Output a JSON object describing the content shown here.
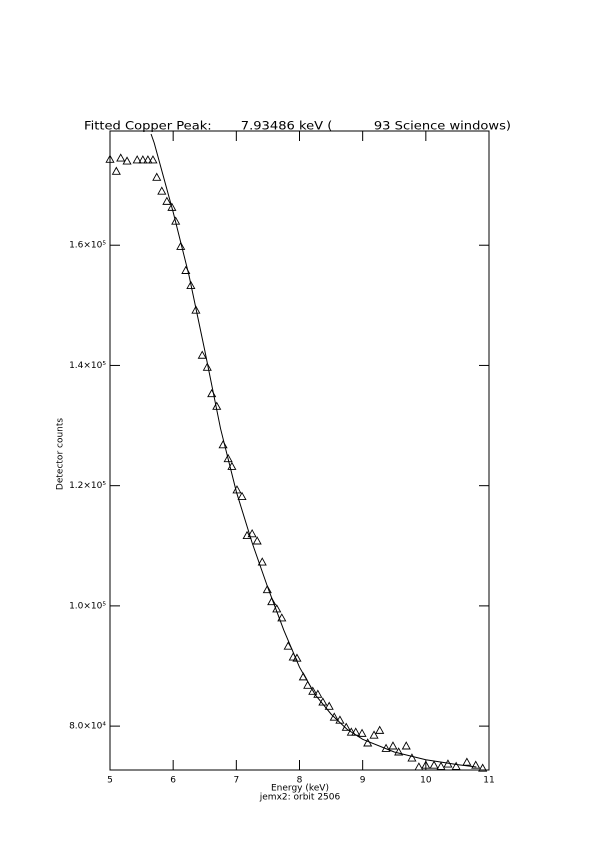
{
  "chart_data": {
    "type": "scatter",
    "title": "Fitted Copper Peak:       7.93486 keV (          93 Science windows)",
    "xlabel": "Energy (keV)",
    "subtitle": "jemx2: orbit 2506",
    "ylabel": "Detector counts",
    "xlim": [
      5,
      11
    ],
    "xticks": [
      5,
      6,
      7,
      8,
      9,
      10,
      11
    ],
    "ylim": [
      72700,
      179000
    ],
    "yticks": [
      {
        "value": 80000,
        "label": "8.0×10⁴"
      },
      {
        "value": 100000,
        "label": "1.0×10⁵"
      },
      {
        "value": 120000,
        "label": "1.2×10⁵"
      },
      {
        "value": 140000,
        "label": "1.4×10⁵"
      },
      {
        "value": 160000,
        "label": "1.6×10⁵"
      }
    ],
    "grid": false,
    "series": [
      {
        "name": "Detector counts",
        "kind": "points",
        "color": "#000000",
        "x": [
          5.0,
          5.1,
          5.17,
          5.27,
          5.43,
          5.52,
          5.6,
          5.68,
          5.74,
          5.82,
          5.9,
          5.98,
          6.04,
          6.12,
          6.2,
          6.28,
          6.36,
          6.46,
          6.54,
          6.61,
          6.69,
          6.79,
          6.87,
          6.93,
          7.01,
          7.09,
          7.17,
          7.25,
          7.33,
          7.41,
          7.49,
          7.56,
          7.64,
          7.72,
          7.82,
          7.9,
          7.96,
          8.06,
          8.13,
          8.21,
          8.29,
          8.37,
          8.47,
          8.55,
          8.64,
          8.74,
          8.82,
          8.89,
          8.99,
          9.08,
          9.18,
          9.27,
          9.37,
          9.48,
          9.57,
          9.69,
          9.78,
          9.89,
          10.0,
          10.13,
          10.24,
          10.35,
          10.48,
          10.65,
          10.79,
          10.9
        ],
        "values": [
          174300,
          172300,
          174500,
          174000,
          174200,
          174200,
          174200,
          174200,
          171300,
          169000,
          167300,
          166300,
          164000,
          159800,
          155800,
          153300,
          149200,
          141700,
          139700,
          135300,
          133200,
          126800,
          124500,
          123200,
          119300,
          118200,
          111700,
          112000,
          110800,
          107300,
          102700,
          100700,
          99500,
          98000,
          93300,
          91500,
          91300,
          88200,
          86800,
          85800,
          85300,
          84000,
          83300,
          81500,
          81000,
          79800,
          79000,
          79000,
          78800,
          77200,
          78500,
          79300,
          76300,
          76700,
          75700,
          76700,
          74700,
          73200,
          73500,
          73500,
          73300,
          73700,
          73300,
          74000,
          73500,
          73000
        ]
      },
      {
        "name": "Fit",
        "kind": "line",
        "color": "#000000",
        "x": [
          5.65,
          5.7,
          6.0,
          6.25,
          6.5,
          6.75,
          7.0,
          7.25,
          7.5,
          7.75,
          8.0,
          8.25,
          8.5,
          8.75,
          9.0,
          9.5,
          10.0,
          10.5,
          10.8
        ],
        "values": [
          178500,
          177000,
          165500,
          155000,
          142500,
          129500,
          119000,
          110500,
          103000,
          96000,
          89800,
          85200,
          82000,
          79500,
          77800,
          75700,
          74400,
          73600,
          73200
        ]
      }
    ]
  }
}
